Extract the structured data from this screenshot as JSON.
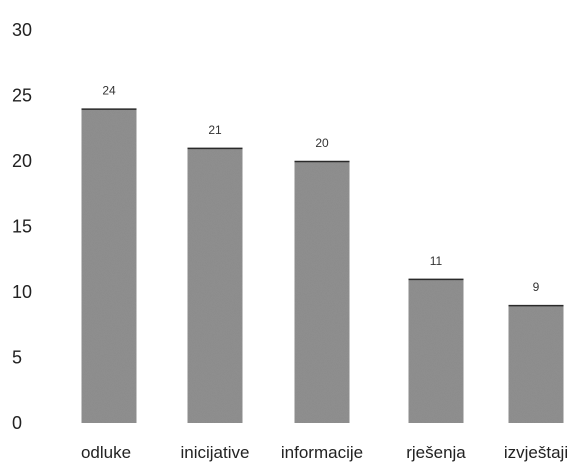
{
  "chart_data": {
    "type": "bar",
    "categories": [
      "odluke",
      "inicijative",
      "informacije",
      "rješenja",
      "izvještaji"
    ],
    "values": [
      24,
      21,
      20,
      11,
      9
    ],
    "data_labels": [
      "24",
      "21",
      "20",
      "11",
      "9"
    ],
    "title": "",
    "xlabel": "",
    "ylabel": "",
    "ylim": [
      0,
      30
    ],
    "yticks": [
      0,
      5,
      10,
      15,
      20,
      25,
      30
    ],
    "ytick_labels": [
      "0",
      "5",
      "10",
      "15",
      "20",
      "25",
      "30"
    ],
    "grid": false,
    "legend": "none",
    "bar_color": "#8c8c8c",
    "bar_edge_color": "#2a2a2a"
  }
}
